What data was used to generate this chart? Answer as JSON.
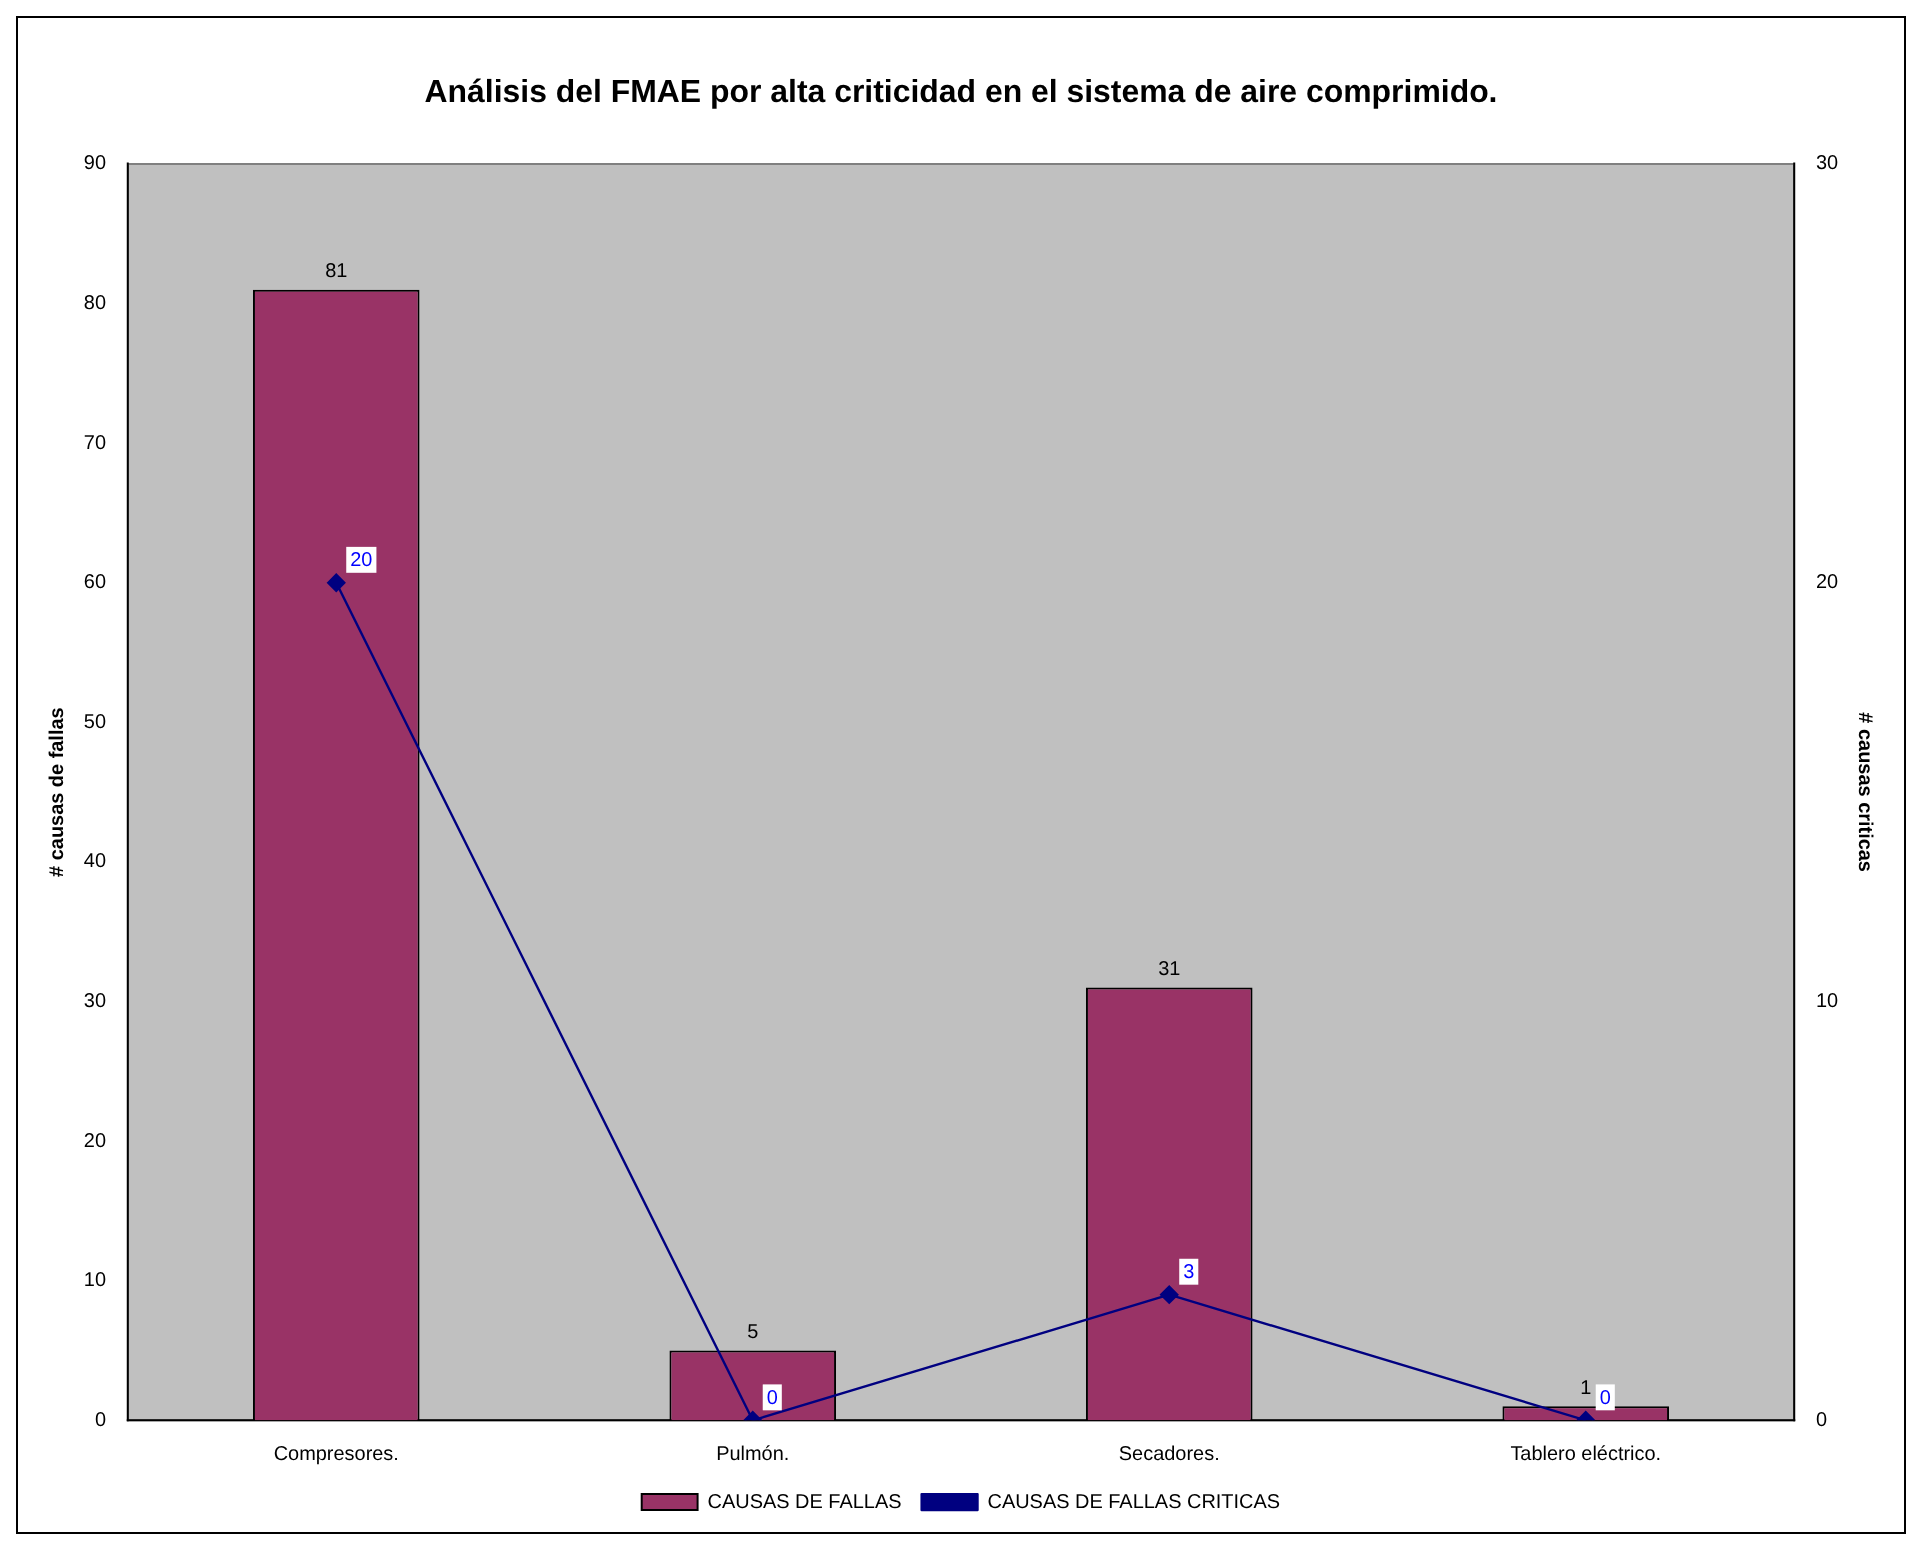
{
  "chart_data": {
    "type": "bar",
    "title": "Análisis del FMAE por alta criticidad en el sistema de aire comprimido.",
    "categories": [
      "Compresores.",
      "Pulmón.",
      "Secadores.",
      "Tablero eléctrico."
    ],
    "series": [
      {
        "name": "CAUSAS DE FALLAS",
        "color": "#993366",
        "values": [
          81,
          5,
          31,
          1
        ]
      },
      {
        "name": "CAUSAS DE FALLAS CRITICAS",
        "type": "line",
        "axis": "y2",
        "color": "#000080",
        "values": [
          20,
          0,
          3,
          0
        ]
      }
    ],
    "ylabel": "# causas de fallas",
    "y2label": "# causas criticas",
    "ylim": [
      0,
      90
    ],
    "yticks": [
      0,
      10,
      20,
      30,
      40,
      50,
      60,
      70,
      80,
      90
    ],
    "y2lim": [
      0,
      30
    ],
    "y2ticks": [
      0,
      10,
      20,
      30
    ],
    "data_labels": true,
    "grid": false,
    "legend": "bottom",
    "marker": "diamond",
    "line_style": "solid"
  }
}
